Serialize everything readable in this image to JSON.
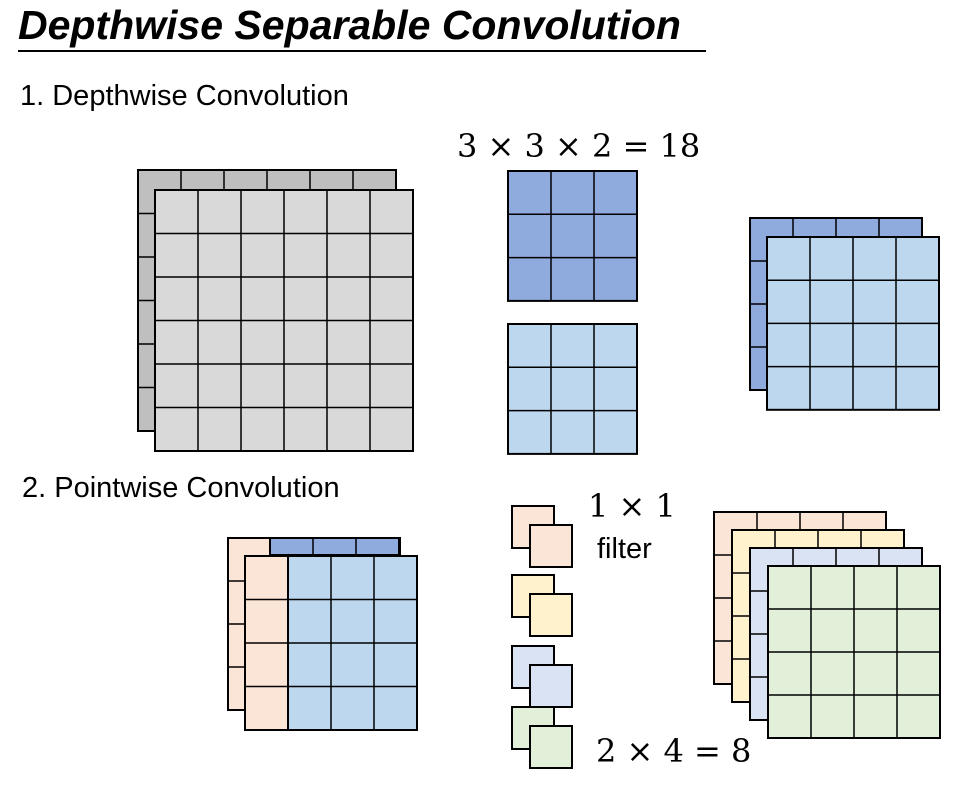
{
  "title": "Depthwise Separable Convolution",
  "sections": {
    "depthwise_label": "1. Depthwise Convolution",
    "pointwise_label": "2. Pointwise Convolution"
  },
  "depthwise": {
    "kernel_formula": "3 × 3 × 2 = 18",
    "input_grid": {
      "rows": 6,
      "cols": 6,
      "channels": 2
    },
    "kernel_grid": {
      "rows": 3,
      "cols": 3,
      "count": 2
    },
    "output_grid": {
      "rows": 4,
      "cols": 4,
      "channels": 2
    }
  },
  "pointwise": {
    "filter_label_line1": "1 × 1",
    "filter_label_line2": "filter",
    "count_formula": "2 × 4 = 8",
    "input_grid": {
      "rows": 4,
      "cols": 4,
      "channels": 2
    },
    "filter_pairs": 4,
    "output_grid": {
      "rows": 4,
      "cols": 4,
      "channels": 4
    }
  },
  "colors": {
    "gray_front": "#d9d9d9",
    "gray_back": "#bfbfbf",
    "blue_dark": "#8faadc",
    "blue_light": "#bdd7ee",
    "orange_light": "#fbe5d6",
    "yellow_light": "#fff2cc",
    "blue_pale": "#dae3f3",
    "green_light": "#e2f0d9",
    "stroke": "#000000"
  }
}
